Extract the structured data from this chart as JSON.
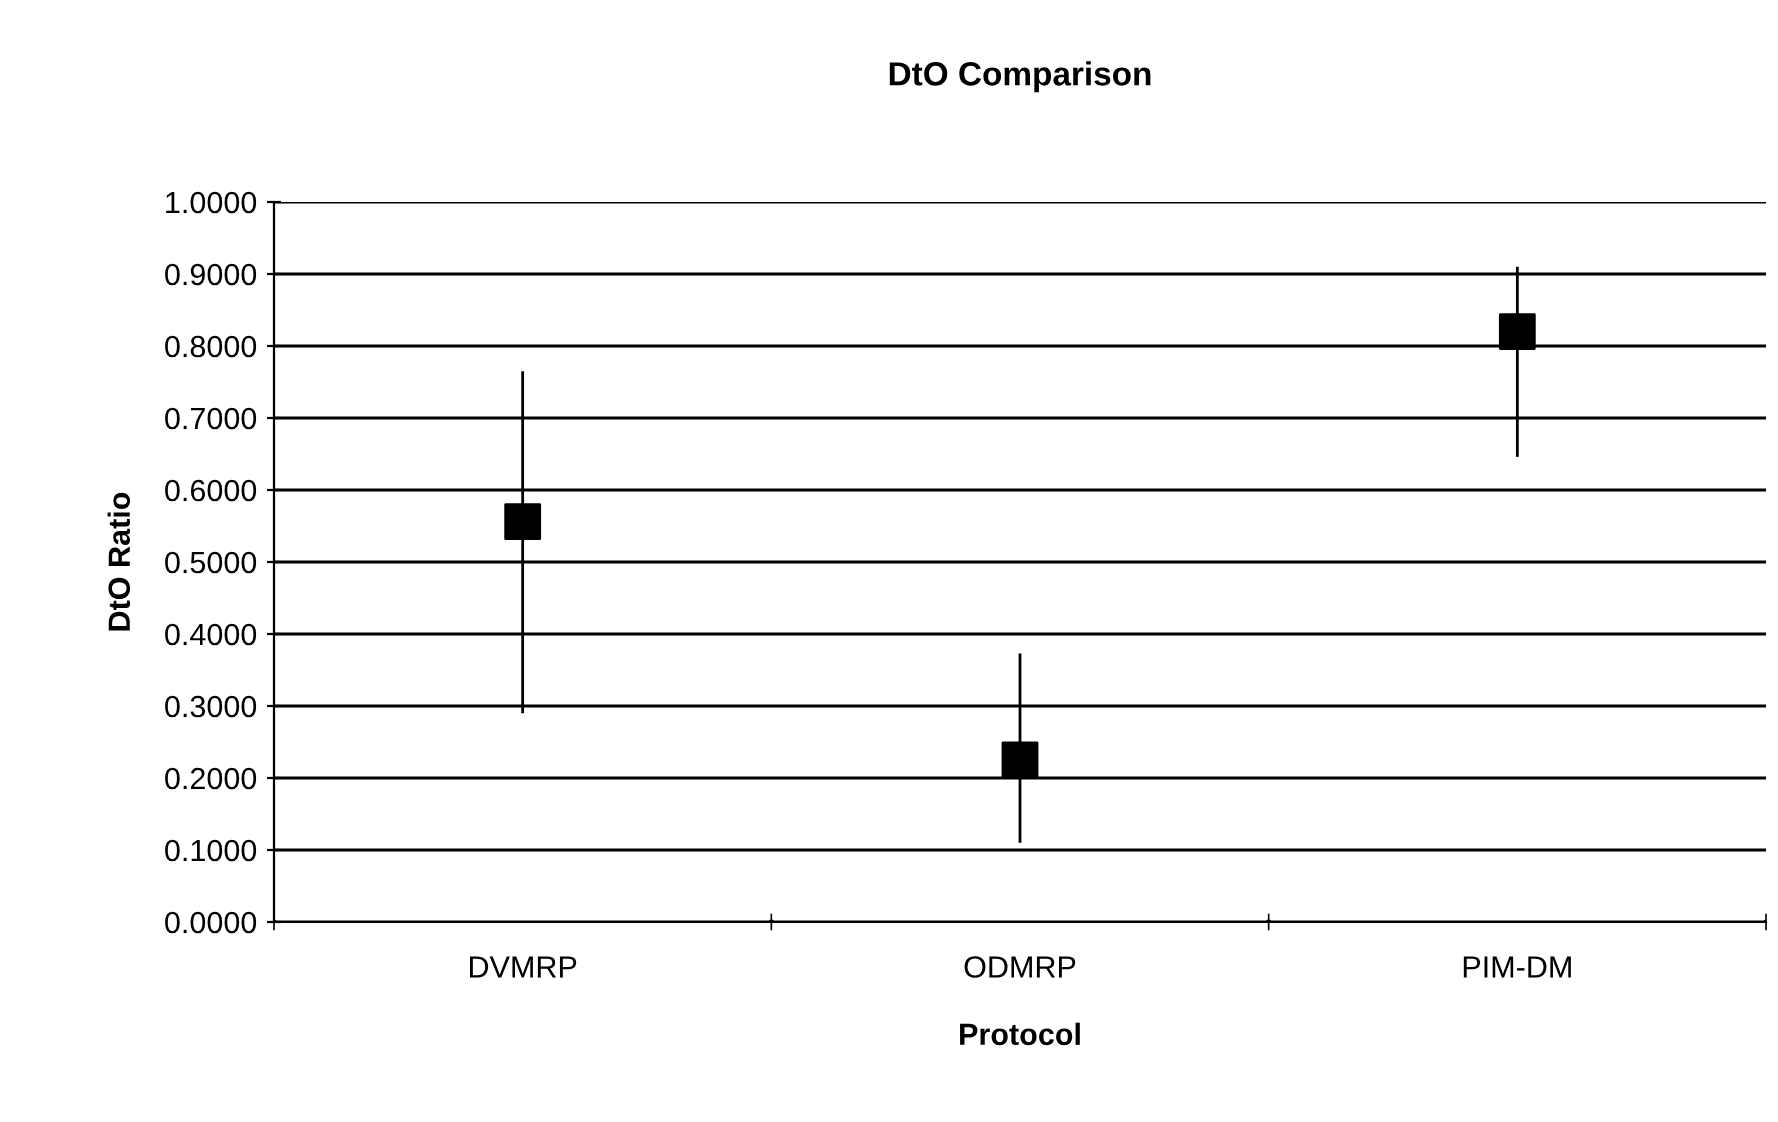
{
  "chart_data": {
    "type": "scatter",
    "title": "DtO Comparison",
    "xlabel": "Protocol",
    "ylabel": "DtO Ratio",
    "categories": [
      "DVMRP",
      "ODMRP",
      "PIM-DM"
    ],
    "values": [
      0.556,
      0.225,
      0.82
    ],
    "errors": [
      [
        0.29,
        0.765
      ],
      [
        0.11,
        0.373
      ],
      [
        0.646,
        0.91
      ]
    ],
    "color": "#000000",
    "marker": "square",
    "ylim": [
      0,
      1
    ],
    "yticks": [
      {
        "value": 0,
        "label": "0.0000"
      },
      {
        "value": 0.1,
        "label": "0.1000"
      },
      {
        "value": 0.2,
        "label": "0.2000"
      },
      {
        "value": 0.3,
        "label": "0.3000"
      },
      {
        "value": 0.4,
        "label": "0.4000"
      },
      {
        "value": 0.5,
        "label": "0.5000"
      },
      {
        "value": 0.6,
        "label": "0.6000"
      },
      {
        "value": 0.7,
        "label": "0.7000"
      },
      {
        "value": 0.8,
        "label": "0.8000"
      },
      {
        "value": 0.9,
        "label": "0.9000"
      },
      {
        "value": 1,
        "label": "1.0000"
      }
    ],
    "grid": "y"
  }
}
